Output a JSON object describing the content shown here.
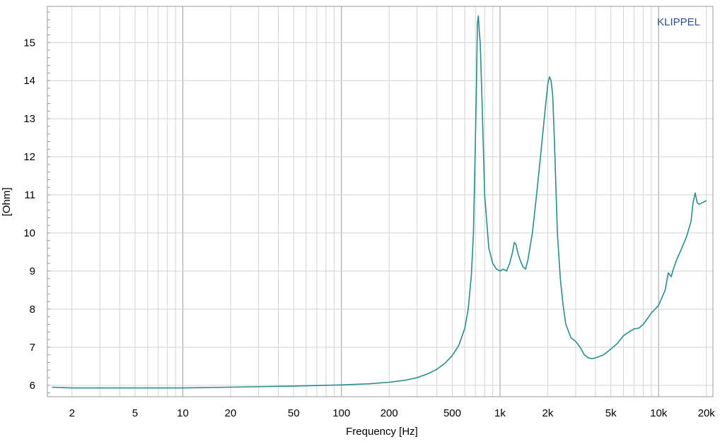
{
  "chart_data": {
    "type": "line",
    "xscale": "log",
    "xlabel": "Frequency [Hz]",
    "ylabel": "[Ohm]",
    "xlim": [
      1.4,
      22000
    ],
    "ylim": [
      5.7,
      15.95
    ],
    "xticks": [
      {
        "value": 2,
        "label": "2"
      },
      {
        "value": 5,
        "label": "5"
      },
      {
        "value": 10,
        "label": "10"
      },
      {
        "value": 20,
        "label": "20"
      },
      {
        "value": 50,
        "label": "50"
      },
      {
        "value": 100,
        "label": "100"
      },
      {
        "value": 200,
        "label": "200"
      },
      {
        "value": 500,
        "label": "500"
      },
      {
        "value": 1000,
        "label": "1k"
      },
      {
        "value": 2000,
        "label": "2k"
      },
      {
        "value": 5000,
        "label": "5k"
      },
      {
        "value": 10000,
        "label": "10k"
      },
      {
        "value": 20000,
        "label": "20k"
      }
    ],
    "yticks": [
      {
        "value": 6,
        "label": "6"
      },
      {
        "value": 7,
        "label": "7"
      },
      {
        "value": 8,
        "label": "8"
      },
      {
        "value": 9,
        "label": "9"
      },
      {
        "value": 10,
        "label": "10"
      },
      {
        "value": 11,
        "label": "11"
      },
      {
        "value": 12,
        "label": "12"
      },
      {
        "value": 13,
        "label": "13"
      },
      {
        "value": 14,
        "label": "14"
      },
      {
        "value": 15,
        "label": "15"
      }
    ],
    "grid": true,
    "watermark": "KLIPPEL",
    "colors": {
      "line": "#2a8c8c",
      "grid": "#d3d3d3",
      "grid_decade": "#aaaaaa",
      "frame": "#999999",
      "watermark": "#2d4f8f"
    },
    "series": [
      {
        "x": [
          1.5,
          2,
          3,
          5,
          10,
          20,
          50,
          100,
          150,
          200,
          250,
          300,
          350,
          400,
          450,
          500,
          550,
          600,
          630,
          660,
          680,
          700,
          710,
          720,
          730,
          740,
          750,
          770,
          800,
          850,
          900,
          950,
          1000,
          1050,
          1100,
          1150,
          1200,
          1230,
          1260,
          1300,
          1350,
          1400,
          1450,
          1500,
          1600,
          1700,
          1800,
          1900,
          2000,
          2050,
          2100,
          2150,
          2200,
          2300,
          2400,
          2500,
          2600,
          2800,
          3000,
          3200,
          3400,
          3600,
          3800,
          4000,
          4500,
          5000,
          5500,
          6000,
          6500,
          7000,
          7500,
          8000,
          8500,
          9000,
          9500,
          10000,
          11000,
          11500,
          12000,
          12500,
          13000,
          14000,
          15000,
          16000,
          16500,
          17000,
          17500,
          18000,
          19000,
          20000
        ],
        "y": [
          5.95,
          5.93,
          5.93,
          5.93,
          5.93,
          5.95,
          5.98,
          6.01,
          6.04,
          6.08,
          6.13,
          6.2,
          6.3,
          6.42,
          6.58,
          6.78,
          7.05,
          7.5,
          8.0,
          8.9,
          10.0,
          12.5,
          13.8,
          15.5,
          15.7,
          15.3,
          15.0,
          13.5,
          11.0,
          9.6,
          9.2,
          9.05,
          9.0,
          9.05,
          9.0,
          9.2,
          9.5,
          9.75,
          9.7,
          9.45,
          9.25,
          9.1,
          9.05,
          9.3,
          10.0,
          11.0,
          12.0,
          13.0,
          13.9,
          14.1,
          14.0,
          13.6,
          12.5,
          10.0,
          8.8,
          8.1,
          7.6,
          7.25,
          7.15,
          7.0,
          6.8,
          6.72,
          6.7,
          6.72,
          6.8,
          6.95,
          7.1,
          7.3,
          7.4,
          7.48,
          7.5,
          7.6,
          7.75,
          7.9,
          8.0,
          8.1,
          8.5,
          8.95,
          8.85,
          9.1,
          9.3,
          9.6,
          9.9,
          10.3,
          10.8,
          11.05,
          10.8,
          10.75,
          10.8,
          10.85
        ]
      }
    ]
  }
}
